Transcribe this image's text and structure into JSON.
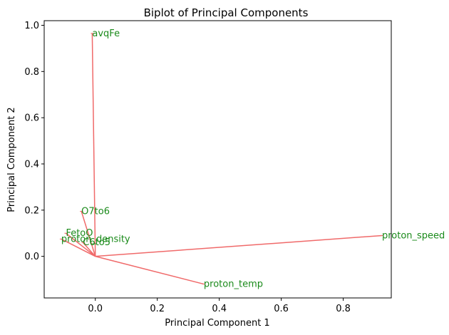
{
  "chart_data": {
    "type": "scatter",
    "title": "Biplot of Principal Components",
    "xlabel": "Principal Component 1",
    "ylabel": "Principal Component 2",
    "xlim": [
      -0.165,
      0.955
    ],
    "ylim": [
      -0.18,
      1.02
    ],
    "xticks": [
      0.0,
      0.2,
      0.4,
      0.6,
      0.8
    ],
    "yticks": [
      0.0,
      0.2,
      0.4,
      0.6,
      0.8,
      1.0
    ],
    "xtick_labels": [
      "0.0",
      "0.2",
      "0.4",
      "0.6",
      "0.8"
    ],
    "ytick_labels": [
      "0.0",
      "0.2",
      "0.4",
      "0.6",
      "0.8",
      "1.0"
    ],
    "grid": false,
    "vector_color": "#f06a6a",
    "label_color": "#1a8a1a",
    "vectors": [
      {
        "label": "avqFe",
        "x": -0.01,
        "y": 0.965
      },
      {
        "label": "O7to6",
        "x": -0.045,
        "y": 0.195
      },
      {
        "label": "FetoO",
        "x": -0.095,
        "y": 0.1
      },
      {
        "label": "proton_density",
        "x": -0.11,
        "y": 0.075
      },
      {
        "label": "C6to5",
        "x": -0.04,
        "y": 0.06
      },
      {
        "label": "proton_speed",
        "x": 0.925,
        "y": 0.09
      },
      {
        "label": "proton_temp",
        "x": 0.35,
        "y": -0.12
      }
    ]
  }
}
